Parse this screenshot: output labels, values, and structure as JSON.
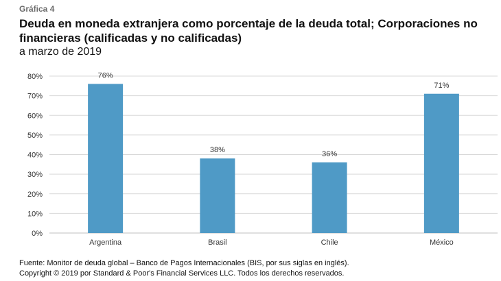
{
  "header": {
    "kicker": "Gráfica 4",
    "title": "Deuda en moneda extranjera como porcentaje de la deuda total; Corporaciones no financieras (calificadas y no calificadas)",
    "subtitle": "a marzo de 2019"
  },
  "footer": {
    "source": "Fuente: Monitor de deuda global – Banco de Pagos Internacionales (BIS, por sus siglas en inglés).",
    "copyright": "Copyright © 2019 por Standard & Poor's Financial Services LLC. Todos los derechos reservados."
  },
  "chart_data": {
    "type": "bar",
    "categories": [
      "Argentina",
      "Brasil",
      "Chile",
      "México"
    ],
    "values": [
      76,
      38,
      36,
      71
    ],
    "data_labels": [
      "76%",
      "38%",
      "36%",
      "71%"
    ],
    "yticks": [
      "0%",
      "10%",
      "20%",
      "30%",
      "40%",
      "50%",
      "60%",
      "70%",
      "80%"
    ],
    "ylim": [
      0,
      80
    ],
    "bar_color": "#4f9ac6",
    "grid": true,
    "legend": "none"
  }
}
